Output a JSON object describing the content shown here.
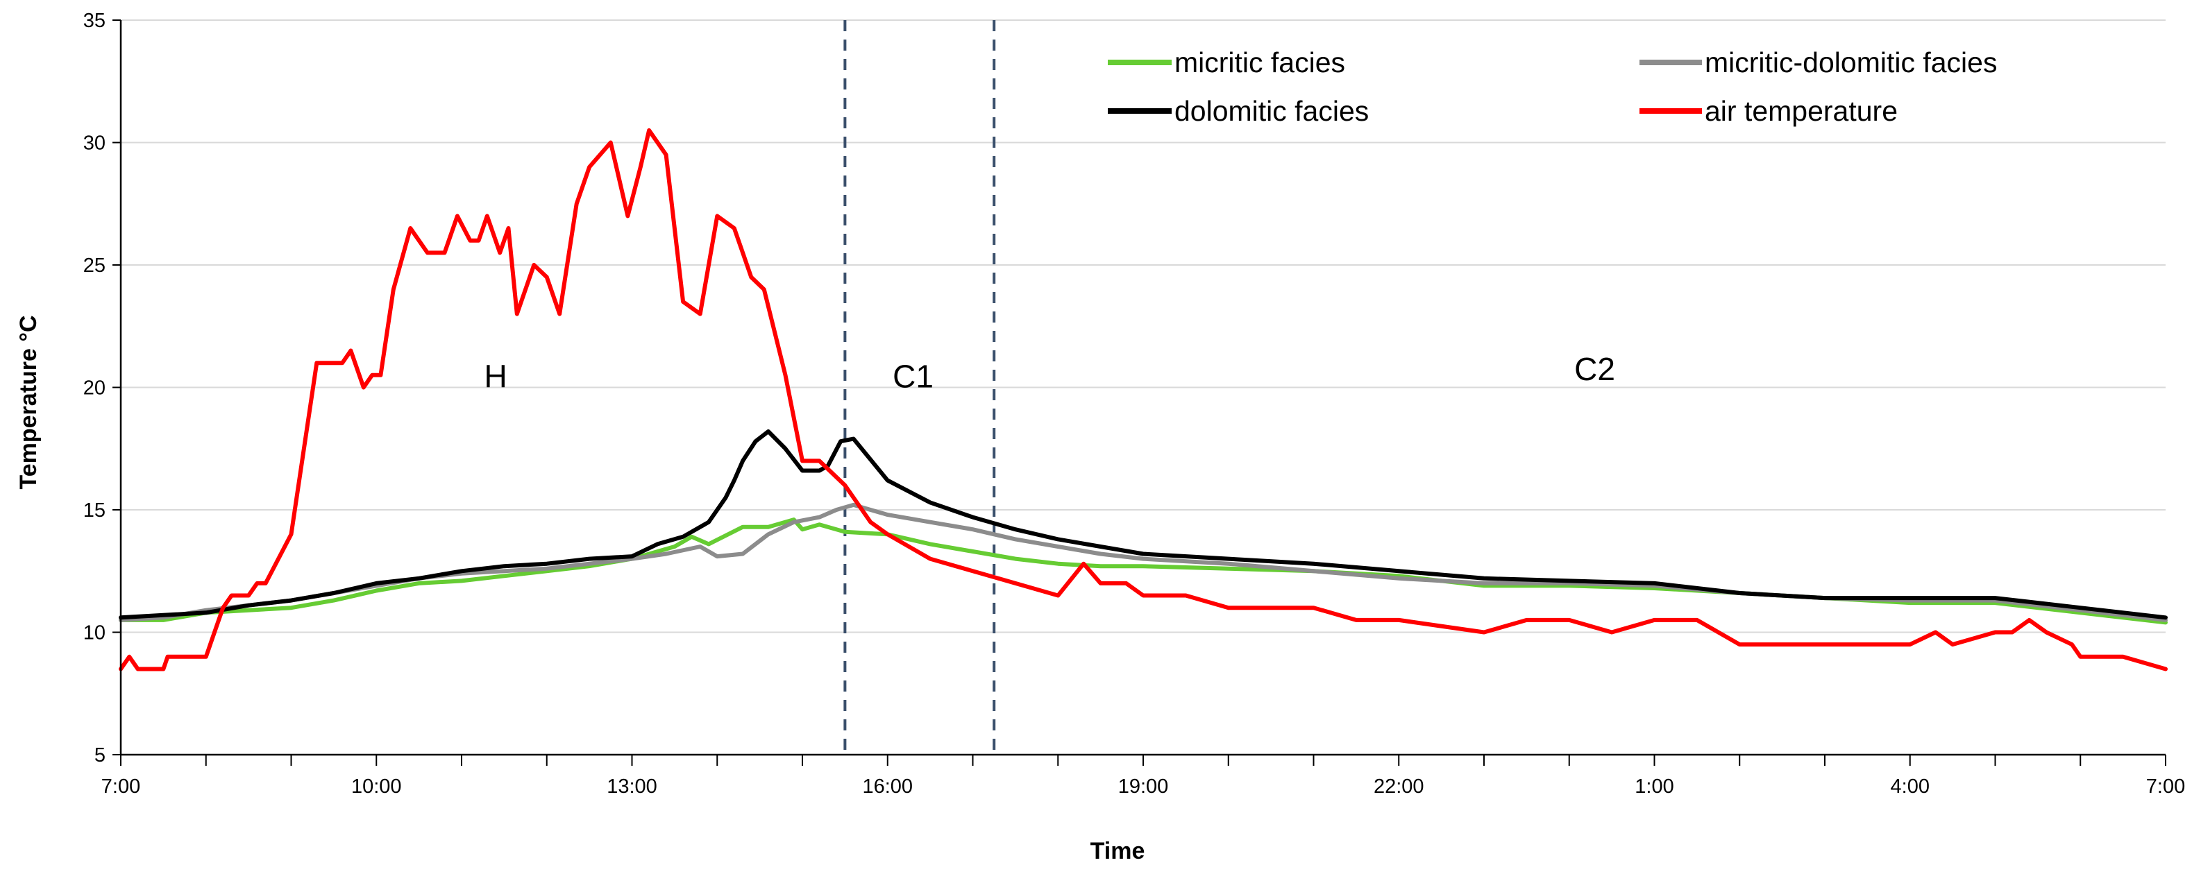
{
  "chart_data": {
    "type": "line",
    "title": "",
    "xlabel": "Time",
    "ylabel": "Temperature °C",
    "ylim": [
      5,
      35
    ],
    "yticks": [
      5,
      10,
      15,
      20,
      25,
      30,
      35
    ],
    "xlim": [
      0,
      24
    ],
    "x_tick_labels": [
      {
        "t": 0,
        "label": "7:00"
      },
      {
        "t": 3,
        "label": "10:00"
      },
      {
        "t": 6,
        "label": "13:00"
      },
      {
        "t": 9,
        "label": "16:00"
      },
      {
        "t": 12,
        "label": "19:00"
      },
      {
        "t": 15,
        "label": "22:00"
      },
      {
        "t": 18,
        "label": "1:00"
      },
      {
        "t": 21,
        "label": "4:00"
      },
      {
        "t": 24,
        "label": "7:00"
      }
    ],
    "grid": true,
    "legend_position": "top-right",
    "colors": {
      "micritic": "#66cc33",
      "micritic_dolomitic": "#8c8c8c",
      "dolomitic": "#000000",
      "air": "#ff0000",
      "vline": "#3a4f6b",
      "grid": "#d9d9d9"
    },
    "series": [
      {
        "name": "micritic facies",
        "key": "micritic",
        "x": [
          0,
          0.5,
          1.0,
          1.5,
          2.0,
          2.5,
          3.0,
          3.5,
          4.0,
          4.5,
          5.0,
          5.5,
          6.0,
          6.5,
          6.7,
          6.9,
          7.3,
          7.6,
          7.9,
          8.0,
          8.2,
          8.5,
          9.0,
          9.5,
          10.0,
          10.5,
          11.0,
          11.5,
          12.0,
          13.0,
          14.0,
          15.0,
          16.0,
          17.0,
          18.0,
          19.0,
          20.0,
          21.0,
          22.0,
          23.0,
          24.0
        ],
        "y": [
          10.5,
          10.5,
          10.8,
          10.9,
          11.0,
          11.3,
          11.7,
          12.0,
          12.1,
          12.3,
          12.5,
          12.7,
          13.0,
          13.5,
          13.9,
          13.6,
          14.3,
          14.3,
          14.6,
          14.2,
          14.4,
          14.1,
          14.0,
          13.6,
          13.3,
          13.0,
          12.8,
          12.7,
          12.7,
          12.6,
          12.5,
          12.3,
          11.9,
          11.9,
          11.8,
          11.6,
          11.4,
          11.2,
          11.2,
          10.8,
          10.4
        ]
      },
      {
        "name": "micritic-dolomitic facies",
        "key": "micritic_dolomitic",
        "x": [
          0,
          0.5,
          1.0,
          1.5,
          2.0,
          2.5,
          3.0,
          3.5,
          4.0,
          4.5,
          5.0,
          5.5,
          6.0,
          6.4,
          6.8,
          7.0,
          7.3,
          7.6,
          7.9,
          8.2,
          8.4,
          8.6,
          9.0,
          9.5,
          10.0,
          10.5,
          11.0,
          11.5,
          12.0,
          13.0,
          14.0,
          15.0,
          16.0,
          17.0,
          18.0,
          19.0,
          20.0,
          21.0,
          22.0,
          23.0,
          24.0
        ],
        "y": [
          10.5,
          10.6,
          10.9,
          11.1,
          11.3,
          11.6,
          11.9,
          12.2,
          12.4,
          12.5,
          12.6,
          12.8,
          13.0,
          13.2,
          13.5,
          13.1,
          13.2,
          14.0,
          14.5,
          14.7,
          15.0,
          15.2,
          14.8,
          14.5,
          14.2,
          13.8,
          13.5,
          13.2,
          13.0,
          12.8,
          12.5,
          12.2,
          12.0,
          12.0,
          11.9,
          11.6,
          11.4,
          11.3,
          11.3,
          10.9,
          10.5
        ]
      },
      {
        "name": "dolomitic facies",
        "key": "dolomitic",
        "x": [
          0,
          0.5,
          1.0,
          1.5,
          2.0,
          2.5,
          3.0,
          3.5,
          4.0,
          4.5,
          5.0,
          5.5,
          6.0,
          6.3,
          6.6,
          6.9,
          7.1,
          7.2,
          7.3,
          7.45,
          7.6,
          7.8,
          8.0,
          8.2,
          8.3,
          8.45,
          8.6,
          9.0,
          9.5,
          10.0,
          10.5,
          11.0,
          11.5,
          12.0,
          13.0,
          14.0,
          15.0,
          16.0,
          17.0,
          18.0,
          19.0,
          20.0,
          21.0,
          22.0,
          23.0,
          24.0
        ],
        "y": [
          10.6,
          10.7,
          10.8,
          11.1,
          11.3,
          11.6,
          12.0,
          12.2,
          12.5,
          12.7,
          12.8,
          13.0,
          13.1,
          13.6,
          13.9,
          14.5,
          15.5,
          16.2,
          17.0,
          17.8,
          18.2,
          17.5,
          16.6,
          16.6,
          16.8,
          17.8,
          17.9,
          16.2,
          15.3,
          14.7,
          14.2,
          13.8,
          13.5,
          13.2,
          13.0,
          12.8,
          12.5,
          12.2,
          12.1,
          12.0,
          11.6,
          11.4,
          11.4,
          11.4,
          11.0,
          10.6
        ]
      },
      {
        "name": "air temperature",
        "key": "air",
        "x": [
          0,
          0.1,
          0.2,
          0.5,
          0.55,
          0.6,
          1.0,
          1.05,
          1.1,
          1.2,
          1.3,
          1.5,
          1.6,
          1.7,
          2.0,
          2.3,
          2.6,
          2.7,
          2.85,
          2.95,
          3.05,
          3.2,
          3.4,
          3.6,
          3.8,
          3.95,
          4.1,
          4.2,
          4.3,
          4.45,
          4.55,
          4.65,
          4.85,
          5.0,
          5.15,
          5.35,
          5.5,
          5.75,
          5.95,
          6.1,
          6.2,
          6.4,
          6.6,
          6.8,
          7.0,
          7.2,
          7.3,
          7.4,
          7.55,
          7.8,
          8.0,
          8.2,
          8.5,
          8.8,
          9.0,
          9.5,
          10.0,
          10.5,
          11.0,
          11.3,
          11.5,
          11.8,
          12.0,
          12.5,
          13.0,
          14.0,
          14.5,
          15.0,
          16.0,
          16.5,
          17.0,
          17.5,
          18.0,
          18.5,
          19.0,
          20.0,
          21.0,
          21.3,
          21.5,
          22.0,
          22.2,
          22.4,
          22.6,
          22.9,
          23.0,
          23.5,
          24.0
        ],
        "y": [
          8.5,
          9.0,
          8.5,
          8.5,
          9.0,
          9.0,
          9.0,
          9.5,
          10.0,
          11.0,
          11.5,
          11.5,
          12.0,
          12.0,
          14.0,
          21.0,
          21.0,
          21.5,
          20.0,
          20.5,
          20.5,
          24.0,
          26.5,
          25.5,
          25.5,
          27.0,
          26.0,
          26.0,
          27.0,
          25.5,
          26.5,
          23.0,
          25.0,
          24.5,
          23.0,
          27.5,
          29.0,
          30.0,
          27.0,
          29.0,
          30.5,
          29.5,
          23.5,
          23.0,
          27.0,
          26.5,
          25.5,
          24.5,
          24.0,
          20.5,
          17.0,
          17.0,
          16.0,
          14.5,
          14.0,
          13.0,
          12.5,
          12.0,
          11.5,
          12.8,
          12.0,
          12.0,
          11.5,
          11.5,
          11.0,
          11.0,
          10.5,
          10.5,
          10.0,
          10.5,
          10.5,
          10.0,
          10.5,
          10.5,
          9.5,
          9.5,
          9.5,
          10.0,
          9.5,
          10.0,
          10.0,
          10.5,
          10.0,
          9.5,
          9.0,
          9.0,
          8.5
        ]
      }
    ],
    "vertical_lines": [
      {
        "t": 8.5
      },
      {
        "t": 10.25
      }
    ],
    "annotations": [
      {
        "text": "H",
        "t": 4.4,
        "y": 20
      },
      {
        "text": "C1",
        "t": 9.3,
        "y": 20
      },
      {
        "text": "C2",
        "t": 17.3,
        "y": 20.3
      }
    ]
  }
}
